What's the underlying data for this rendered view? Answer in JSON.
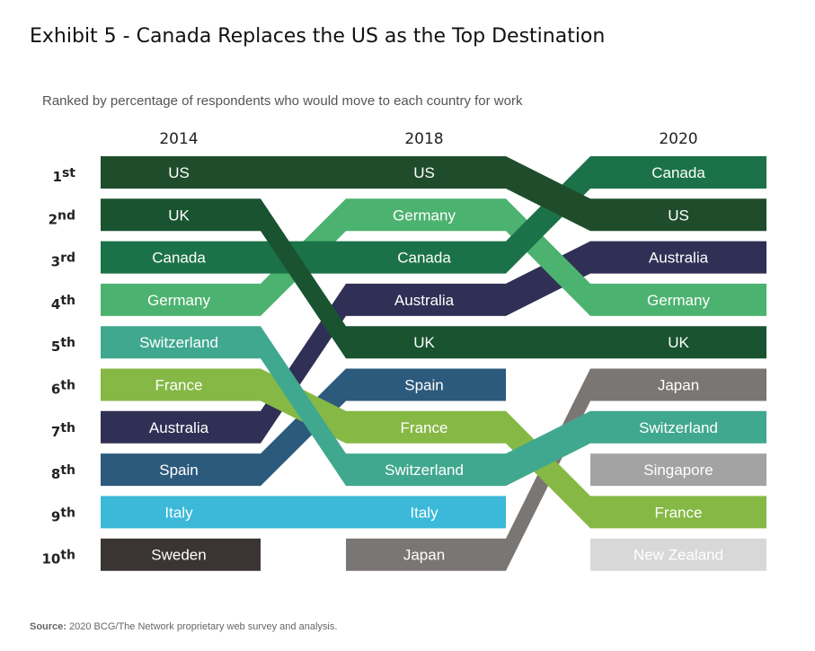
{
  "header": {
    "title": "Exhibit 5 - Canada Replaces the US as the Top Destination",
    "subtitle": "Ranked by percentage of respondents who would move to each country for work"
  },
  "source": {
    "label": "Source:",
    "text": "2020 BCG/The Network proprietary web survey and analysis."
  },
  "chart_data": {
    "type": "bump",
    "title": "Exhibit 5 - Canada Replaces the US as the Top Destination",
    "subtitle": "Ranked by percentage of respondents who would move to each country for work",
    "years": [
      "2014",
      "2018",
      "2020"
    ],
    "ranks": [
      {
        "num": "1",
        "suffix": "st"
      },
      {
        "num": "2",
        "suffix": "nd"
      },
      {
        "num": "3",
        "suffix": "rd"
      },
      {
        "num": "4",
        "suffix": "th"
      },
      {
        "num": "5",
        "suffix": "th"
      },
      {
        "num": "6",
        "suffix": "th"
      },
      {
        "num": "7",
        "suffix": "th"
      },
      {
        "num": "8",
        "suffix": "th"
      },
      {
        "num": "9",
        "suffix": "th"
      },
      {
        "num": "10",
        "suffix": "th"
      }
    ],
    "series": [
      {
        "name": "US",
        "color": "#1f4d2c",
        "ranks": [
          1,
          1,
          2
        ]
      },
      {
        "name": "UK",
        "color": "#195330",
        "ranks": [
          2,
          5,
          5
        ]
      },
      {
        "name": "Canada",
        "color": "#1b7248",
        "ranks": [
          3,
          3,
          1
        ]
      },
      {
        "name": "Germany",
        "color": "#4cb26f",
        "ranks": [
          4,
          2,
          4
        ]
      },
      {
        "name": "Switzerland",
        "color": "#40a88f",
        "ranks": [
          5,
          8,
          7
        ]
      },
      {
        "name": "France",
        "color": "#86b845",
        "ranks": [
          6,
          7,
          9
        ]
      },
      {
        "name": "Australia",
        "color": "#302f55",
        "ranks": [
          7,
          4,
          3
        ]
      },
      {
        "name": "Spain",
        "color": "#2c5a7c",
        "ranks": [
          8,
          6,
          null
        ]
      },
      {
        "name": "Italy",
        "color": "#3cb9d9",
        "ranks": [
          9,
          9,
          null
        ]
      },
      {
        "name": "Sweden",
        "color": "#3a3533",
        "ranks": [
          10,
          null,
          null
        ]
      },
      {
        "name": "Japan",
        "color": "#7a7674",
        "ranks": [
          null,
          10,
          6
        ]
      },
      {
        "name": "Singapore",
        "color": "#a3a3a3",
        "ranks": [
          null,
          null,
          8
        ]
      },
      {
        "name": "New Zealand",
        "color": "#d8d8d8",
        "ranks": [
          null,
          null,
          10
        ]
      }
    ]
  }
}
